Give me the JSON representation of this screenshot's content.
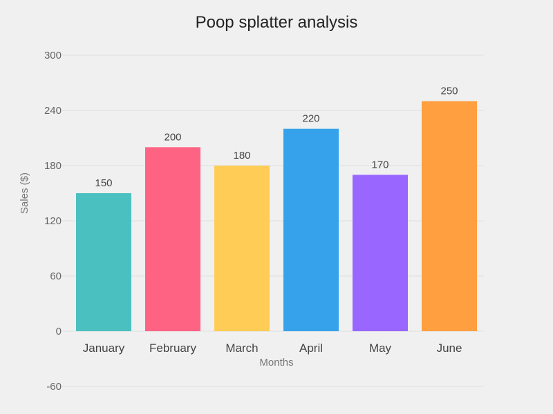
{
  "chart_data": {
    "type": "bar",
    "title": "Poop splatter analysis",
    "xlabel": "Months",
    "ylabel": "Sales ($)",
    "categories": [
      "January",
      "February",
      "March",
      "April",
      "May",
      "June"
    ],
    "values": [
      150,
      200,
      180,
      220,
      170,
      250
    ],
    "colors": [
      "#4bc0c0",
      "#ff6384",
      "#ffcd56",
      "#36a2eb",
      "#9966ff",
      "#ff9f40"
    ],
    "ylim": [
      -60,
      300
    ],
    "yticks": [
      -60,
      0,
      60,
      120,
      180,
      240,
      300
    ],
    "grid": true,
    "legend": "none",
    "data_labels": true
  }
}
